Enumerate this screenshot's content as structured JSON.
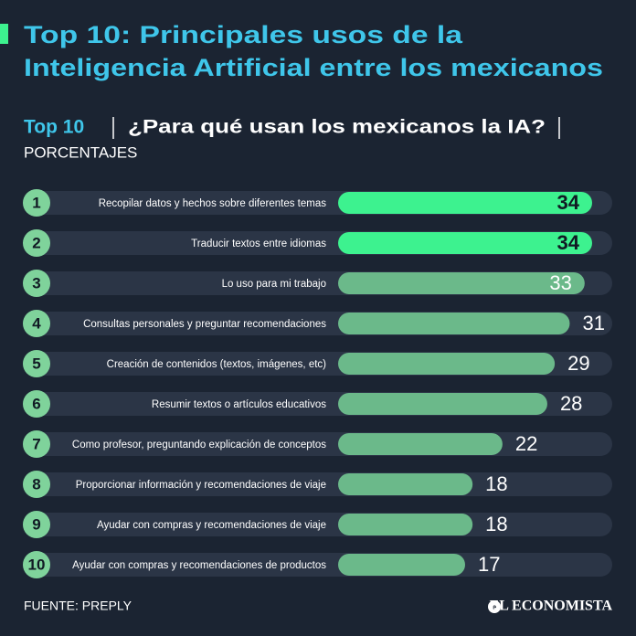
{
  "chart_data": {
    "type": "bar",
    "title": [
      "Top 10: Principales usos de la",
      "Inteligencia Artificial entre los mexicanos"
    ],
    "subtitle_lead": "Top 10",
    "subtitle": "¿Para qué usan los mexicanos la IA?",
    "unit_label": "PORCENTAJES",
    "ranks": [
      1,
      2,
      3,
      4,
      5,
      6,
      7,
      8,
      9,
      10
    ],
    "categories": [
      "Recopilar datos y hechos sobre diferentes temas",
      "Traducir textos entre idiomas",
      "Lo uso para mi trabajo",
      "Consultas personales y preguntar recomendaciones",
      "Creación de contenidos (textos, imágenes, etc)",
      "Resumir textos o artículos educativos",
      "Como profesor, preguntando explicación de conceptos",
      "Proporcionar información y recomendaciones de viaje",
      "Ayudar con compras y recomendaciones de viaje",
      "Ayudar con compras y recomendaciones de productos"
    ],
    "values": [
      34,
      34,
      33,
      31,
      29,
      28,
      22,
      18,
      18,
      17
    ],
    "colors": [
      "#3df28f",
      "#3df28f",
      "#6bb98a",
      "#6bb98a",
      "#6bb98a",
      "#6bb98a",
      "#6bb98a",
      "#6bb98a",
      "#6bb98a",
      "#6bb98a"
    ],
    "source": "FUENTE: PREPLY",
    "publisher": "EL ECONOMISTA"
  }
}
